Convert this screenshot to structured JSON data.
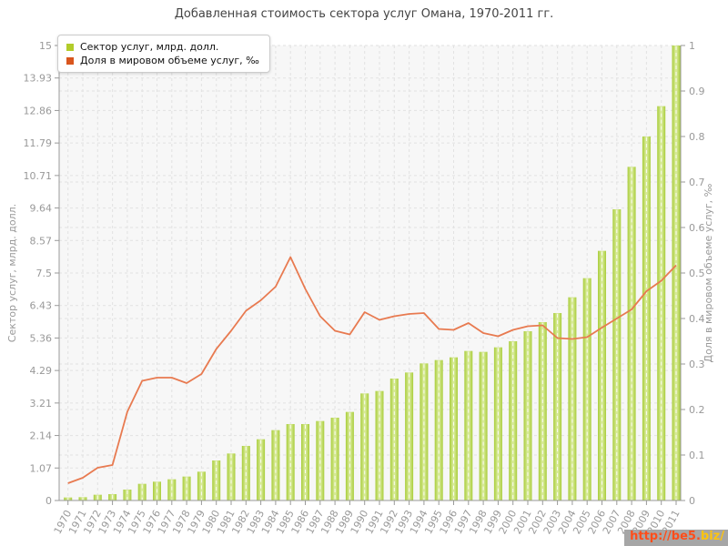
{
  "header": {
    "title": "Добавленная стоимость сектора услуг Омана, 1970-2011 гг."
  },
  "legend": {
    "items": [
      {
        "label": "Сектор услуг, млрд. долл.",
        "marker_color": "#b2cc2a"
      },
      {
        "label": "Доля в мировом объеме услуг, ‰",
        "marker_color": "#d9561e"
      }
    ]
  },
  "axes": {
    "left": {
      "title": "Сектор услуг, млрд. долл.",
      "tick_labels": [
        "0",
        "1.07",
        "2.14",
        "3.21",
        "4.29",
        "5.36",
        "6.43",
        "7.5",
        "8.57",
        "9.64",
        "10.71",
        "11.79",
        "12.86",
        "13.93",
        "15"
      ]
    },
    "right": {
      "title": "Доля в мировом объеме услуг, ‰",
      "tick_labels": [
        "0",
        "0.1",
        "0.2",
        "0.3",
        "0.4",
        "0.5",
        "0.6",
        "0.7",
        "0.8",
        "0.9",
        "1"
      ]
    }
  },
  "chart_data": {
    "type": "bar",
    "title": "Добавленная стоимость сектора услуг Омана, 1970-2011 гг.",
    "categories": [
      "1970",
      "1971",
      "1972",
      "1973",
      "1974",
      "1975",
      "1976",
      "1977",
      "1978",
      "1979",
      "1980",
      "1981",
      "1982",
      "1983",
      "1984",
      "1985",
      "1986",
      "1987",
      "1988",
      "1989",
      "1990",
      "1991",
      "1992",
      "1993",
      "1994",
      "1995",
      "1996",
      "1997",
      "1998",
      "1999",
      "2000",
      "2001",
      "2002",
      "2003",
      "2004",
      "2005",
      "2006",
      "2007",
      "2008",
      "2009",
      "2010",
      "2011"
    ],
    "series": [
      {
        "name": "Сектор услуг, млрд. долл.",
        "type": "bar",
        "axis": "left",
        "color": "#a9cd3a",
        "color_light": "#d9eb9b",
        "values": [
          0.1,
          0.11,
          0.19,
          0.21,
          0.36,
          0.55,
          0.62,
          0.7,
          0.79,
          0.95,
          1.32,
          1.55,
          1.8,
          2.02,
          2.32,
          2.52,
          2.52,
          2.62,
          2.73,
          2.92,
          3.53,
          3.61,
          4.02,
          4.22,
          4.52,
          4.63,
          4.72,
          4.93,
          4.9,
          5.05,
          5.25,
          5.58,
          5.88,
          6.18,
          6.7,
          7.33,
          8.23,
          9.6,
          11.0,
          12.0,
          13.0,
          15.0
        ]
      },
      {
        "name": "Доля в мировом объеме услуг, ‰",
        "type": "line",
        "axis": "right",
        "color": "#e87a50",
        "values": [
          0.038,
          0.05,
          0.072,
          0.078,
          0.195,
          0.263,
          0.27,
          0.27,
          0.258,
          0.278,
          0.333,
          0.373,
          0.417,
          0.44,
          0.47,
          0.535,
          0.465,
          0.405,
          0.373,
          0.365,
          0.414,
          0.397,
          0.405,
          0.41,
          0.412,
          0.377,
          0.375,
          0.39,
          0.368,
          0.361,
          0.375,
          0.383,
          0.385,
          0.357,
          0.355,
          0.359,
          0.38,
          0.4,
          0.42,
          0.46,
          0.483,
          0.517
        ]
      }
    ],
    "ylim_left": [
      0,
      15
    ],
    "ylim_right": [
      0,
      1
    ],
    "grid": true,
    "legend_position": "top-left"
  },
  "style": {
    "plot_bg": "#f7f7f7",
    "grid_color": "#e2e2e2",
    "axis_color": "#999999",
    "tick_label_color": "#999999"
  },
  "watermark": {
    "text_prefix": "http://be5.",
    "text_suffix": "biz/",
    "prefix_color": "#ff4d1a",
    "suffix_color": "#fec40d",
    "background": "#a6a6a6"
  }
}
